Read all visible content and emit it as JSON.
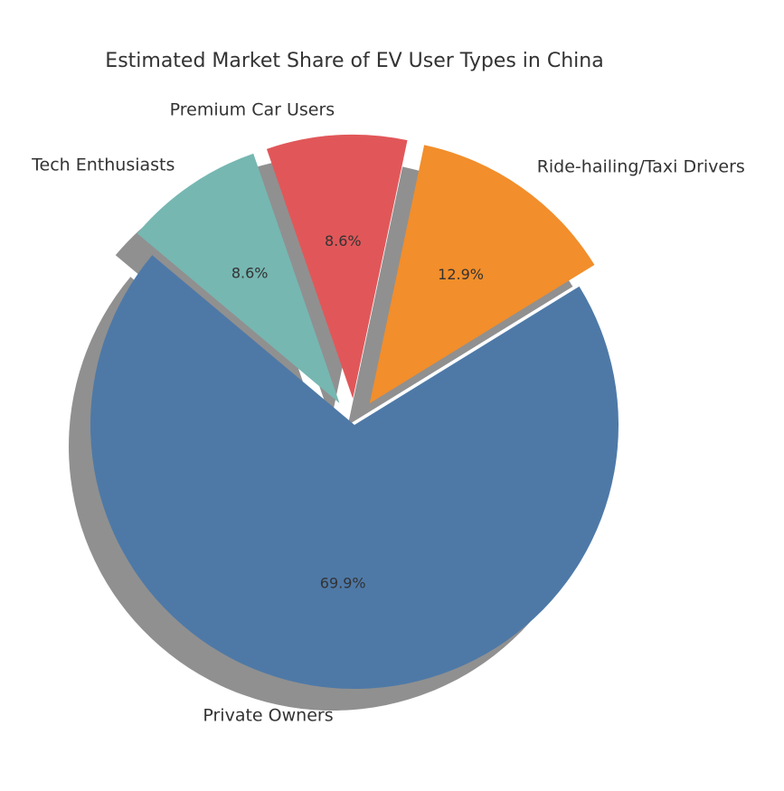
{
  "chart_data": {
    "type": "pie",
    "title": "Estimated Market Share of EV User Types in China",
    "categories": [
      "Private Owners",
      "Ride-hailing/Taxi Drivers",
      "Premium Car Users",
      "Tech Enthusiasts"
    ],
    "values": [
      69.9,
      12.9,
      8.6,
      8.6
    ],
    "value_labels": [
      "69.9%",
      "12.9%",
      "8.6%",
      "8.6%"
    ],
    "colors": [
      "#4e79a7",
      "#f28e2b",
      "#e15759",
      "#76b7b2"
    ],
    "explode": [
      0,
      0.1,
      0.1,
      0.1
    ],
    "shadow": true,
    "start_angle_deg": 140,
    "legend": "none"
  }
}
